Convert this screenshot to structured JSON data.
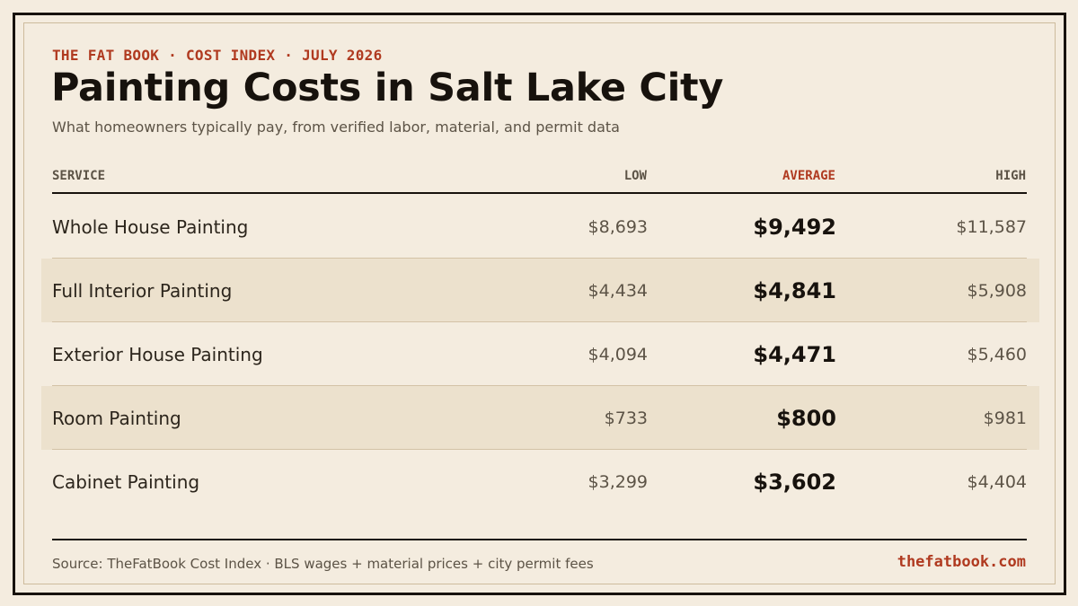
{
  "header": {
    "kicker": "THE FAT BOOK · COST INDEX · JULY 2026",
    "title": "Painting Costs in Salt Lake City",
    "subtitle": "What homeowners typically pay, from verified labor, material, and permit data"
  },
  "table": {
    "columns": {
      "service": "SERVICE",
      "low": "LOW",
      "average": "AVERAGE",
      "high": "HIGH"
    },
    "rows": [
      {
        "service": "Whole House Painting",
        "low": "$8,693",
        "average": "$9,492",
        "high": "$11,587"
      },
      {
        "service": "Full Interior Painting",
        "low": "$4,434",
        "average": "$4,841",
        "high": "$5,908"
      },
      {
        "service": "Exterior House Painting",
        "low": "$4,094",
        "average": "$4,471",
        "high": "$5,460"
      },
      {
        "service": "Room Painting",
        "low": "$733",
        "average": "$800",
        "high": "$981"
      },
      {
        "service": "Cabinet Painting",
        "low": "$3,299",
        "average": "$3,602",
        "high": "$4,404"
      }
    ]
  },
  "footer": {
    "source": "Source: TheFatBook Cost Index · BLS wages + material prices + city permit fees",
    "site": "thefatbook.com"
  },
  "colors": {
    "background": "#f4ecdf",
    "accent": "#b03a20",
    "ink": "#17120d",
    "alt_row": "#ece1cd"
  }
}
